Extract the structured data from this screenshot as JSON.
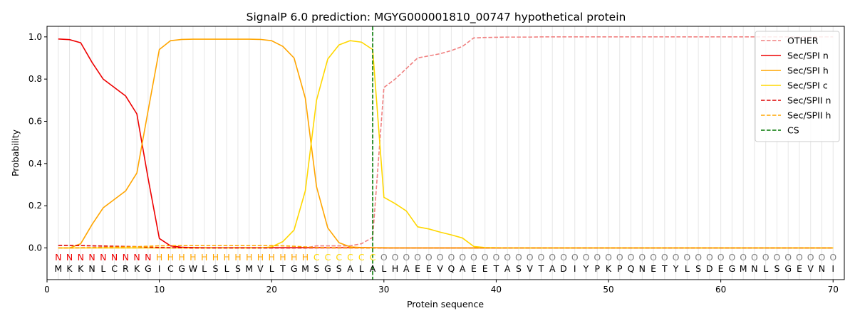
{
  "chart_data": {
    "type": "line",
    "title": "SignalP 6.0 prediction: MGYG000001810_00747 hypothetical protein",
    "xlabel": "Protein sequence",
    "ylabel": "Probability",
    "xlim": [
      0,
      71
    ],
    "ylim": [
      -0.15,
      1.05
    ],
    "x_ticks": [
      0,
      10,
      20,
      30,
      40,
      50,
      60,
      70
    ],
    "y_ticks": [
      0.0,
      0.2,
      0.4,
      0.6,
      0.8,
      1.0
    ],
    "grid": "vertical lines at each residue",
    "legend_position": "top-right",
    "sequence": [
      "M",
      "K",
      "K",
      "N",
      "L",
      "C",
      "R",
      "K",
      "G",
      "I",
      "C",
      "G",
      "W",
      "L",
      "S",
      "L",
      "S",
      "M",
      "V",
      "L",
      "T",
      "G",
      "M",
      "S",
      "G",
      "S",
      "A",
      "L",
      "A",
      "L",
      "H",
      "A",
      "E",
      "E",
      "V",
      "Q",
      "A",
      "E",
      "E",
      "T",
      "A",
      "S",
      "V",
      "T",
      "A",
      "D",
      "I",
      "Y",
      "P",
      "K",
      "P",
      "Q",
      "N",
      "E",
      "T",
      "Y",
      "L",
      "S",
      "D",
      "E",
      "G",
      "M",
      "N",
      "L",
      "S",
      "G",
      "E",
      "V",
      "N",
      "I"
    ],
    "labels": [
      "N",
      "N",
      "N",
      "N",
      "N",
      "N",
      "N",
      "N",
      "N",
      "H",
      "H",
      "H",
      "H",
      "H",
      "H",
      "H",
      "H",
      "H",
      "H",
      "H",
      "H",
      "H",
      "H",
      "C",
      "C",
      "C",
      "C",
      "C",
      "C",
      "O",
      "O",
      "O",
      "O",
      "O",
      "O",
      "O",
      "O",
      "O",
      "O",
      "O",
      "O",
      "O",
      "O",
      "O",
      "O",
      "O",
      "O",
      "O",
      "O",
      "O",
      "O",
      "O",
      "O",
      "O",
      "O",
      "O",
      "O",
      "O",
      "O",
      "O",
      "O",
      "O",
      "O",
      "O",
      "O",
      "O",
      "O",
      "O",
      "O",
      "O"
    ],
    "label_colors": {
      "N": "#ee0000",
      "H": "#ffa500",
      "C": "#ffd700",
      "O": "#808080"
    },
    "cleavage_site": 29,
    "series": [
      {
        "name": "OTHER",
        "color": "#f08080",
        "dash": "dashed",
        "key": "other",
        "values": [
          0.0,
          0.0,
          0.0,
          0.0,
          0.0,
          0.0,
          0.0,
          0.0,
          0.0,
          0.0,
          0.0,
          0.0,
          0.0,
          0.0,
          0.0,
          0.0,
          0.0,
          0.0,
          0.0,
          0.0,
          0.0,
          0.0,
          0.0,
          0.01,
          0.01,
          0.01,
          0.01,
          0.02,
          0.05,
          0.76,
          0.8,
          0.85,
          0.9,
          0.91,
          0.92,
          0.935,
          0.955,
          0.995,
          0.997,
          0.998,
          0.999,
          0.999,
          0.999,
          1,
          1,
          1,
          1,
          1,
          1,
          1,
          1,
          1,
          1,
          1,
          1,
          1,
          1,
          1,
          1,
          1,
          1,
          1,
          1,
          1,
          1,
          1,
          1,
          1,
          1,
          1
        ]
      },
      {
        "name": "Sec/SPI n",
        "color": "#ee0000",
        "dash": "solid",
        "key": "spin",
        "values": [
          0.99,
          0.987,
          0.972,
          0.88,
          0.8,
          0.76,
          0.72,
          0.635,
          0.33,
          0.045,
          0.01,
          0.003,
          0.002,
          0.001,
          0.001,
          0.001,
          0.001,
          0.001,
          0.001,
          0.001,
          0.001,
          0.001,
          0.001,
          0.001,
          0.001,
          0.001,
          0.001,
          0.001,
          0.001,
          0.0,
          0.0,
          0.0,
          0.0,
          0.0,
          0.0,
          0.0,
          0.0,
          0.0,
          0.0,
          0.0,
          0.0,
          0.0,
          0.0,
          0.0,
          0.0,
          0.0,
          0.0,
          0.0,
          0.0,
          0.0,
          0.0,
          0.0,
          0.0,
          0.0,
          0.0,
          0.0,
          0.0,
          0.0,
          0.0,
          0.0,
          0.0,
          0.0,
          0.0,
          0.0,
          0.0,
          0.0,
          0.0,
          0.0,
          0.0,
          0.0
        ]
      },
      {
        "name": "Sec/SPI h",
        "color": "#ffa500",
        "dash": "solid",
        "key": "spih",
        "values": [
          0.0,
          0.0,
          0.02,
          0.11,
          0.19,
          0.23,
          0.27,
          0.355,
          0.65,
          0.94,
          0.982,
          0.988,
          0.989,
          0.989,
          0.989,
          0.989,
          0.989,
          0.989,
          0.988,
          0.982,
          0.955,
          0.9,
          0.71,
          0.29,
          0.095,
          0.025,
          0.005,
          0.002,
          0.001,
          0.001,
          0.0,
          0.0,
          0.0,
          0.0,
          0.0,
          0.0,
          0.0,
          0.0,
          0.0,
          0.0,
          0.0,
          0.0,
          0.0,
          0.0,
          0.0,
          0.0,
          0.0,
          0.0,
          0.0,
          0.0,
          0.0,
          0.0,
          0.0,
          0.0,
          0.0,
          0.0,
          0.0,
          0.0,
          0.0,
          0.0,
          0.0,
          0.0,
          0.0,
          0.0,
          0.0,
          0.0,
          0.0,
          0.0,
          0.0,
          0.0
        ]
      },
      {
        "name": "Sec/SPI c",
        "color": "#ffd700",
        "dash": "solid",
        "key": "spic",
        "values": [
          0.0,
          0.0,
          0.0,
          0.0,
          0.0,
          0.0,
          0.0,
          0.0,
          0.0,
          0.0,
          0.0,
          0.0,
          0.0,
          0.0,
          0.0,
          0.0,
          0.0,
          0.0,
          0.0,
          0.005,
          0.03,
          0.085,
          0.27,
          0.7,
          0.895,
          0.962,
          0.982,
          0.975,
          0.94,
          0.24,
          0.21,
          0.175,
          0.1,
          0.09,
          0.075,
          0.062,
          0.047,
          0.007,
          0.002,
          0.001,
          0.0,
          0.0,
          0.0,
          0.0,
          0.0,
          0.0,
          0.0,
          0.0,
          0.0,
          0.0,
          0.0,
          0.0,
          0.0,
          0.0,
          0.0,
          0.0,
          0.0,
          0.0,
          0.0,
          0.0,
          0.0,
          0.0,
          0.0,
          0.0,
          0.0,
          0.0,
          0.0,
          0.0,
          0.0,
          0.0
        ]
      },
      {
        "name": "Sec/SPII n",
        "color": "#dd0000",
        "dash": "dashed",
        "key": "spiin",
        "values": [
          0.012,
          0.012,
          0.011,
          0.01,
          0.009,
          0.008,
          0.007,
          0.006,
          0.004,
          0.002,
          0.001,
          0.001,
          0.0,
          0.0,
          0.0,
          0.0,
          0.0,
          0.0,
          0.0,
          0.0,
          0.0,
          0.0,
          0.0,
          0.0,
          0.0,
          0.0,
          0.0,
          0.0,
          0.0,
          0.0,
          0.0,
          0.0,
          0.0,
          0.0,
          0.0,
          0.0,
          0.0,
          0.0,
          0.0,
          0.0,
          0.0,
          0.0,
          0.0,
          0.0,
          0.0,
          0.0,
          0.0,
          0.0,
          0.0,
          0.0,
          0.0,
          0.0,
          0.0,
          0.0,
          0.0,
          0.0,
          0.0,
          0.0,
          0.0,
          0.0,
          0.0,
          0.0,
          0.0,
          0.0,
          0.0,
          0.0,
          0.0,
          0.0,
          0.0,
          0.0
        ]
      },
      {
        "name": "Sec/SPII h",
        "color": "#ffa500",
        "dash": "dashed",
        "key": "spiih",
        "values": [
          0.0,
          0.0,
          0.001,
          0.002,
          0.003,
          0.004,
          0.005,
          0.006,
          0.008,
          0.01,
          0.011,
          0.011,
          0.011,
          0.011,
          0.011,
          0.011,
          0.011,
          0.011,
          0.011,
          0.011,
          0.01,
          0.008,
          0.005,
          0.002,
          0.001,
          0.0,
          0.0,
          0.0,
          0.0,
          0.0,
          0.0,
          0.0,
          0.0,
          0.0,
          0.0,
          0.0,
          0.0,
          0.0,
          0.0,
          0.0,
          0.0,
          0.0,
          0.0,
          0.0,
          0.0,
          0.0,
          0.0,
          0.0,
          0.0,
          0.0,
          0.0,
          0.0,
          0.0,
          0.0,
          0.0,
          0.0,
          0.0,
          0.0,
          0.0,
          0.0,
          0.0,
          0.0,
          0.0,
          0.0,
          0.0,
          0.0,
          0.0,
          0.0,
          0.0,
          0.0
        ]
      }
    ],
    "cs_legend": {
      "name": "CS",
      "color": "#007700",
      "dash": "dashed"
    }
  }
}
